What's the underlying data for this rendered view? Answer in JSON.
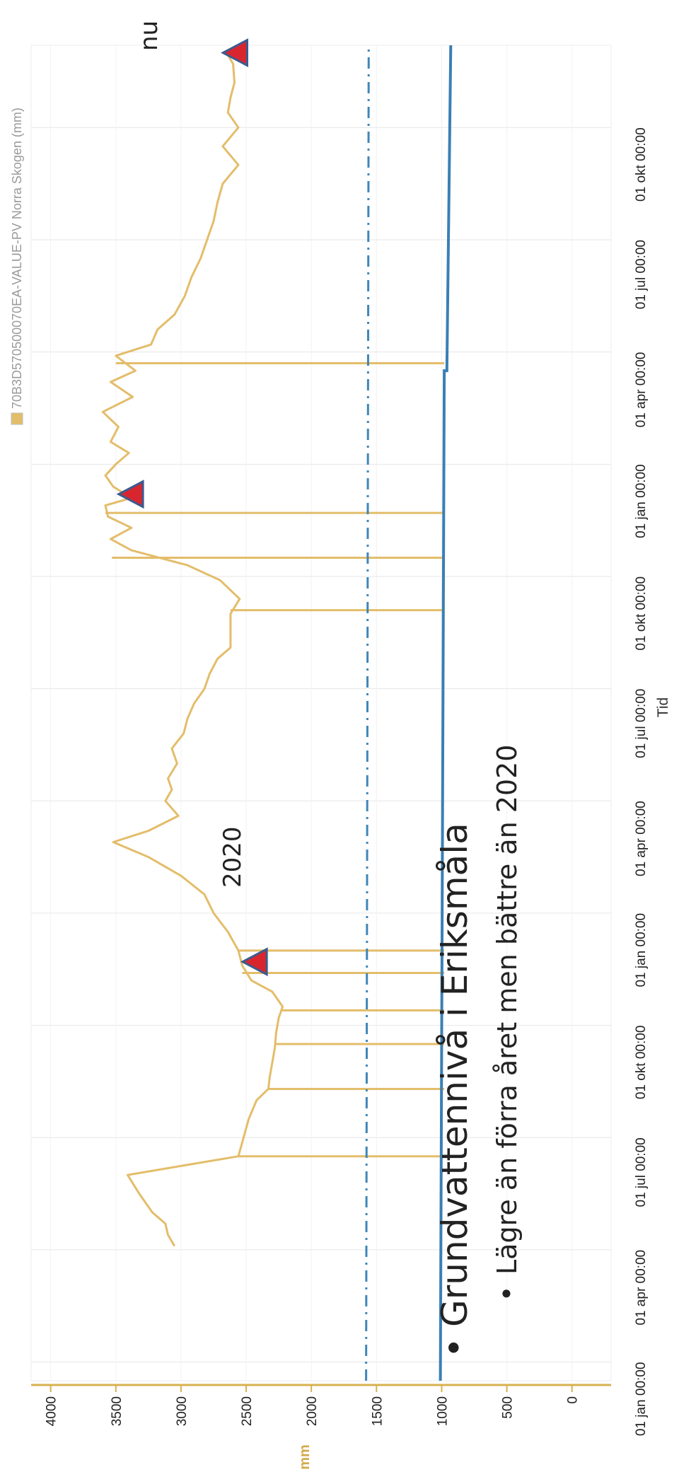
{
  "slide": {
    "bullet_symbol": "•",
    "title": "Grundvattennivå i Eriksmåla",
    "subtitle": "Lägre än förra året men bättre än 2020"
  },
  "annotations": {
    "year_label": "2020",
    "now_label": "nu"
  },
  "colors": {
    "series": "#e3bd6a",
    "threshold": "#3f86b8",
    "bottom_line": "#3a7fb5",
    "marker_fill": "#d9262e",
    "marker_stroke": "#3d5a8f",
    "grid": "#e6e6e6",
    "y_axis": "#d8b050"
  },
  "chart_data": {
    "type": "line",
    "orientation": "rotated 90° clockwise on page",
    "legend": {
      "label": "70B3D570500070EA-VALUE-PV Norra Skogen (mm)",
      "position": "top"
    },
    "xlabel": "Tid",
    "ylabel": "mm",
    "ylim": [
      -300,
      4150
    ],
    "y_ticks": [
      4000,
      3500,
      3000,
      2500,
      2000,
      1500,
      1000,
      500,
      0
    ],
    "x_ticks": [
      "01 jan 00:00",
      "01 apr 00:00",
      "01 jul 00:00",
      "01 okt 00:00",
      "01 jan 00:00",
      "01 apr 00:00",
      "01 jul 00:00",
      "01 okt 00:00",
      "01 jan 00:00",
      "01 apr 00:00",
      "01 jul 00:00",
      "01 okt 00:00"
    ],
    "x_unit": "months since first 01 jan tick",
    "x_range": [
      -0.5,
      35.2
    ],
    "grid": true,
    "series": [
      {
        "name": "70B3D570500070EA-VALUE-PV Norra Skogen (mm)",
        "points": [
          [
            3.1,
            3050
          ],
          [
            3.4,
            3100
          ],
          [
            3.7,
            3120
          ],
          [
            4.0,
            3220
          ],
          [
            4.5,
            3320
          ],
          [
            5.0,
            3410
          ],
          [
            5.5,
            2560
          ],
          [
            6.0,
            2520
          ],
          [
            6.5,
            2480
          ],
          [
            7.0,
            2420
          ],
          [
            7.3,
            2330
          ],
          [
            7.6,
            2320
          ],
          [
            8.0,
            2300
          ],
          [
            8.4,
            2280
          ],
          [
            8.8,
            2270
          ],
          [
            9.2,
            2250
          ],
          [
            9.5,
            2220
          ],
          [
            9.9,
            2300
          ],
          [
            10.2,
            2460
          ],
          [
            10.6,
            2530
          ],
          [
            11.0,
            2560
          ],
          [
            11.5,
            2640
          ],
          [
            12.0,
            2750
          ],
          [
            12.5,
            2820
          ],
          [
            13.0,
            3000
          ],
          [
            13.5,
            3250
          ],
          [
            13.9,
            3520
          ],
          [
            14.2,
            3250
          ],
          [
            14.6,
            3020
          ],
          [
            15.0,
            3120
          ],
          [
            15.3,
            3070
          ],
          [
            15.6,
            3100
          ],
          [
            16.0,
            3030
          ],
          [
            16.4,
            3070
          ],
          [
            16.8,
            2980
          ],
          [
            17.2,
            2950
          ],
          [
            17.6,
            2900
          ],
          [
            18.0,
            2820
          ],
          [
            18.4,
            2780
          ],
          [
            18.8,
            2720
          ],
          [
            19.1,
            2620
          ],
          [
            19.4,
            2620
          ],
          [
            19.7,
            2620
          ],
          [
            20.0,
            2620
          ],
          [
            20.4,
            2550
          ],
          [
            20.9,
            2700
          ],
          [
            21.3,
            2950
          ],
          [
            21.7,
            3380
          ],
          [
            22.0,
            3540
          ],
          [
            22.3,
            3380
          ],
          [
            22.6,
            3560
          ],
          [
            22.9,
            3580
          ],
          [
            23.1,
            3380
          ],
          [
            23.4,
            3520
          ],
          [
            23.7,
            3580
          ],
          [
            24.0,
            3500
          ],
          [
            24.3,
            3400
          ],
          [
            24.6,
            3540
          ],
          [
            25.0,
            3480
          ],
          [
            25.4,
            3600
          ],
          [
            25.8,
            3370
          ],
          [
            26.2,
            3540
          ],
          [
            26.5,
            3350
          ],
          [
            26.9,
            3500
          ],
          [
            27.2,
            3230
          ],
          [
            27.6,
            3180
          ],
          [
            28.0,
            3050
          ],
          [
            28.5,
            2970
          ],
          [
            29.0,
            2920
          ],
          [
            29.5,
            2850
          ],
          [
            30.0,
            2800
          ],
          [
            30.5,
            2750
          ],
          [
            31.0,
            2720
          ],
          [
            31.5,
            2680
          ],
          [
            32.0,
            2560
          ],
          [
            32.5,
            2680
          ],
          [
            33.0,
            2560
          ],
          [
            33.4,
            2640
          ],
          [
            33.8,
            2620
          ],
          [
            34.2,
            2590
          ],
          [
            34.7,
            2600
          ],
          [
            35.0,
            2650
          ]
        ],
        "drops": [
          {
            "x": 5.5,
            "top": 2560,
            "bottom": 980
          },
          {
            "x": 7.3,
            "top": 2330,
            "bottom": 980
          },
          {
            "x": 8.5,
            "top": 2280,
            "bottom": 980
          },
          {
            "x": 9.4,
            "top": 2230,
            "bottom": 980
          },
          {
            "x": 10.4,
            "top": 2530,
            "bottom": 980
          },
          {
            "x": 11.0,
            "top": 2560,
            "bottom": 980
          },
          {
            "x": 20.1,
            "top": 2620,
            "bottom": 980
          },
          {
            "x": 21.5,
            "top": 3530,
            "bottom": 980
          },
          {
            "x": 22.7,
            "top": 3580,
            "bottom": 980
          },
          {
            "x": 26.7,
            "top": 3500,
            "bottom": 980
          }
        ]
      },
      {
        "name": "",
        "kind": "threshold (dash-dot)",
        "points": [
          [
            -0.5,
            1580
          ],
          [
            35.2,
            1560
          ]
        ]
      },
      {
        "name": "",
        "kind": "reference line",
        "points": [
          [
            -0.5,
            1010
          ],
          [
            26.5,
            980
          ],
          [
            26.5,
            960
          ],
          [
            35.2,
            930
          ]
        ]
      }
    ],
    "markers": [
      {
        "x": 10.7,
        "y": 2430
      },
      {
        "x": 23.2,
        "y": 3380
      },
      {
        "x": 35.0,
        "y": 2580
      }
    ]
  }
}
